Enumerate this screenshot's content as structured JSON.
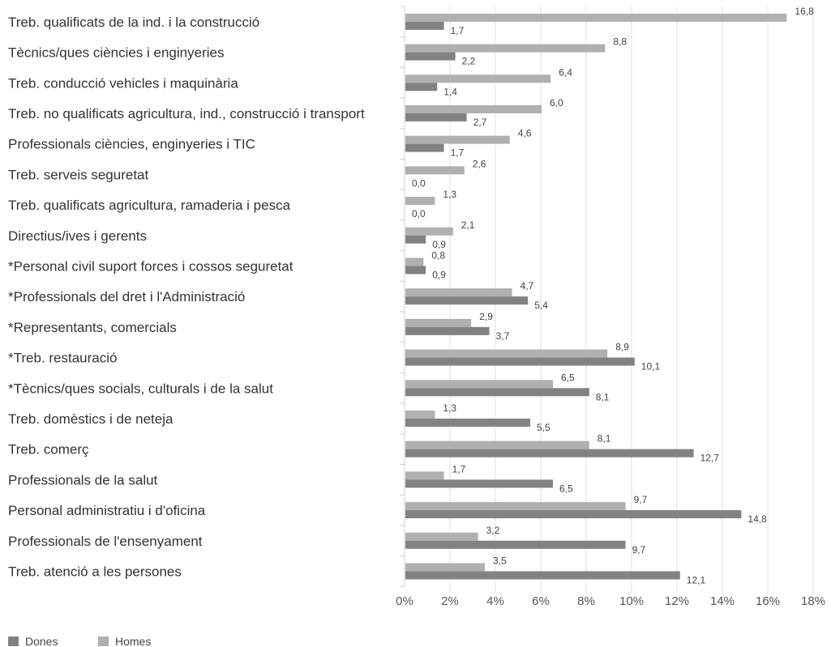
{
  "chart_data": {
    "type": "bar",
    "orientation": "horizontal",
    "categories": [
      "Treb. qualificats de la ind. i la construcció",
      " Tècnics/ques ciències i enginyeries",
      "Treb. conducció vehicles i maquinària",
      "Treb. no qualificats agricultura, ind., construcció i transport",
      "Professionals ciències, enginyeries i TIC",
      "Treb. serveis seguretat",
      "Treb. qualificats agricultura, ramaderia i pesca",
      "Directius/ives i gerents",
      "*Personal civil suport forces i cossos seguretat",
      "*Professionals del dret i l'Administració",
      "*Representants, comercials",
      "*Treb. restauració",
      " *Tècnics/ques socials, culturals i de la salut",
      "Treb. domèstics i de neteja",
      "Treb. comerç",
      "Professionals de la salut",
      "Personal administratiu i d'oficina",
      "Professionals de l'ensenyament",
      "Treb. atenció a les persones"
    ],
    "series": [
      {
        "name": "Homes",
        "color": "#b0b0b0",
        "values": [
          16.8,
          8.8,
          6.4,
          6.0,
          4.6,
          2.6,
          1.3,
          2.1,
          0.8,
          4.7,
          2.9,
          8.9,
          6.5,
          1.3,
          8.1,
          1.7,
          9.7,
          3.2,
          3.5
        ],
        "labels": [
          "16,8",
          "8,8",
          "6,4",
          "6,0",
          "4,6",
          "2,6",
          "1,3",
          "2,1",
          "0,8",
          "4,7",
          "2,9",
          "8,9",
          "6,5",
          "1,3",
          "8,1",
          "1,7",
          "9,7",
          "3,2",
          "3,5"
        ]
      },
      {
        "name": "Dones",
        "color": "#828282",
        "values": [
          1.7,
          2.2,
          1.4,
          2.7,
          1.7,
          0.0,
          0.0,
          0.9,
          0.9,
          5.4,
          3.7,
          10.1,
          8.1,
          5.5,
          12.7,
          6.5,
          14.8,
          9.7,
          12.1
        ],
        "labels": [
          "1,7",
          "2,2",
          "1,4",
          "2,7",
          "1,7",
          "0,0",
          "0,0",
          "0,9",
          "0,9",
          "5,4",
          "3,7",
          "10,1",
          "8,1",
          "5,5",
          "12,7",
          "6,5",
          "14,8",
          "9,7",
          "12,1"
        ]
      }
    ],
    "xlim": [
      0,
      18
    ],
    "xticks": [
      0,
      2,
      4,
      6,
      8,
      10,
      12,
      14,
      16,
      18
    ],
    "xtick_labels": [
      "0%",
      "2%",
      "4%",
      "6%",
      "8%",
      "10%",
      "12%",
      "14%",
      "16%",
      "18%"
    ],
    "grid": true,
    "legend": {
      "placement": "bottom-left",
      "entries": [
        {
          "name": "Dones",
          "color": "#828282"
        },
        {
          "name": "Homes",
          "color": "#b0b0b0"
        }
      ]
    }
  }
}
